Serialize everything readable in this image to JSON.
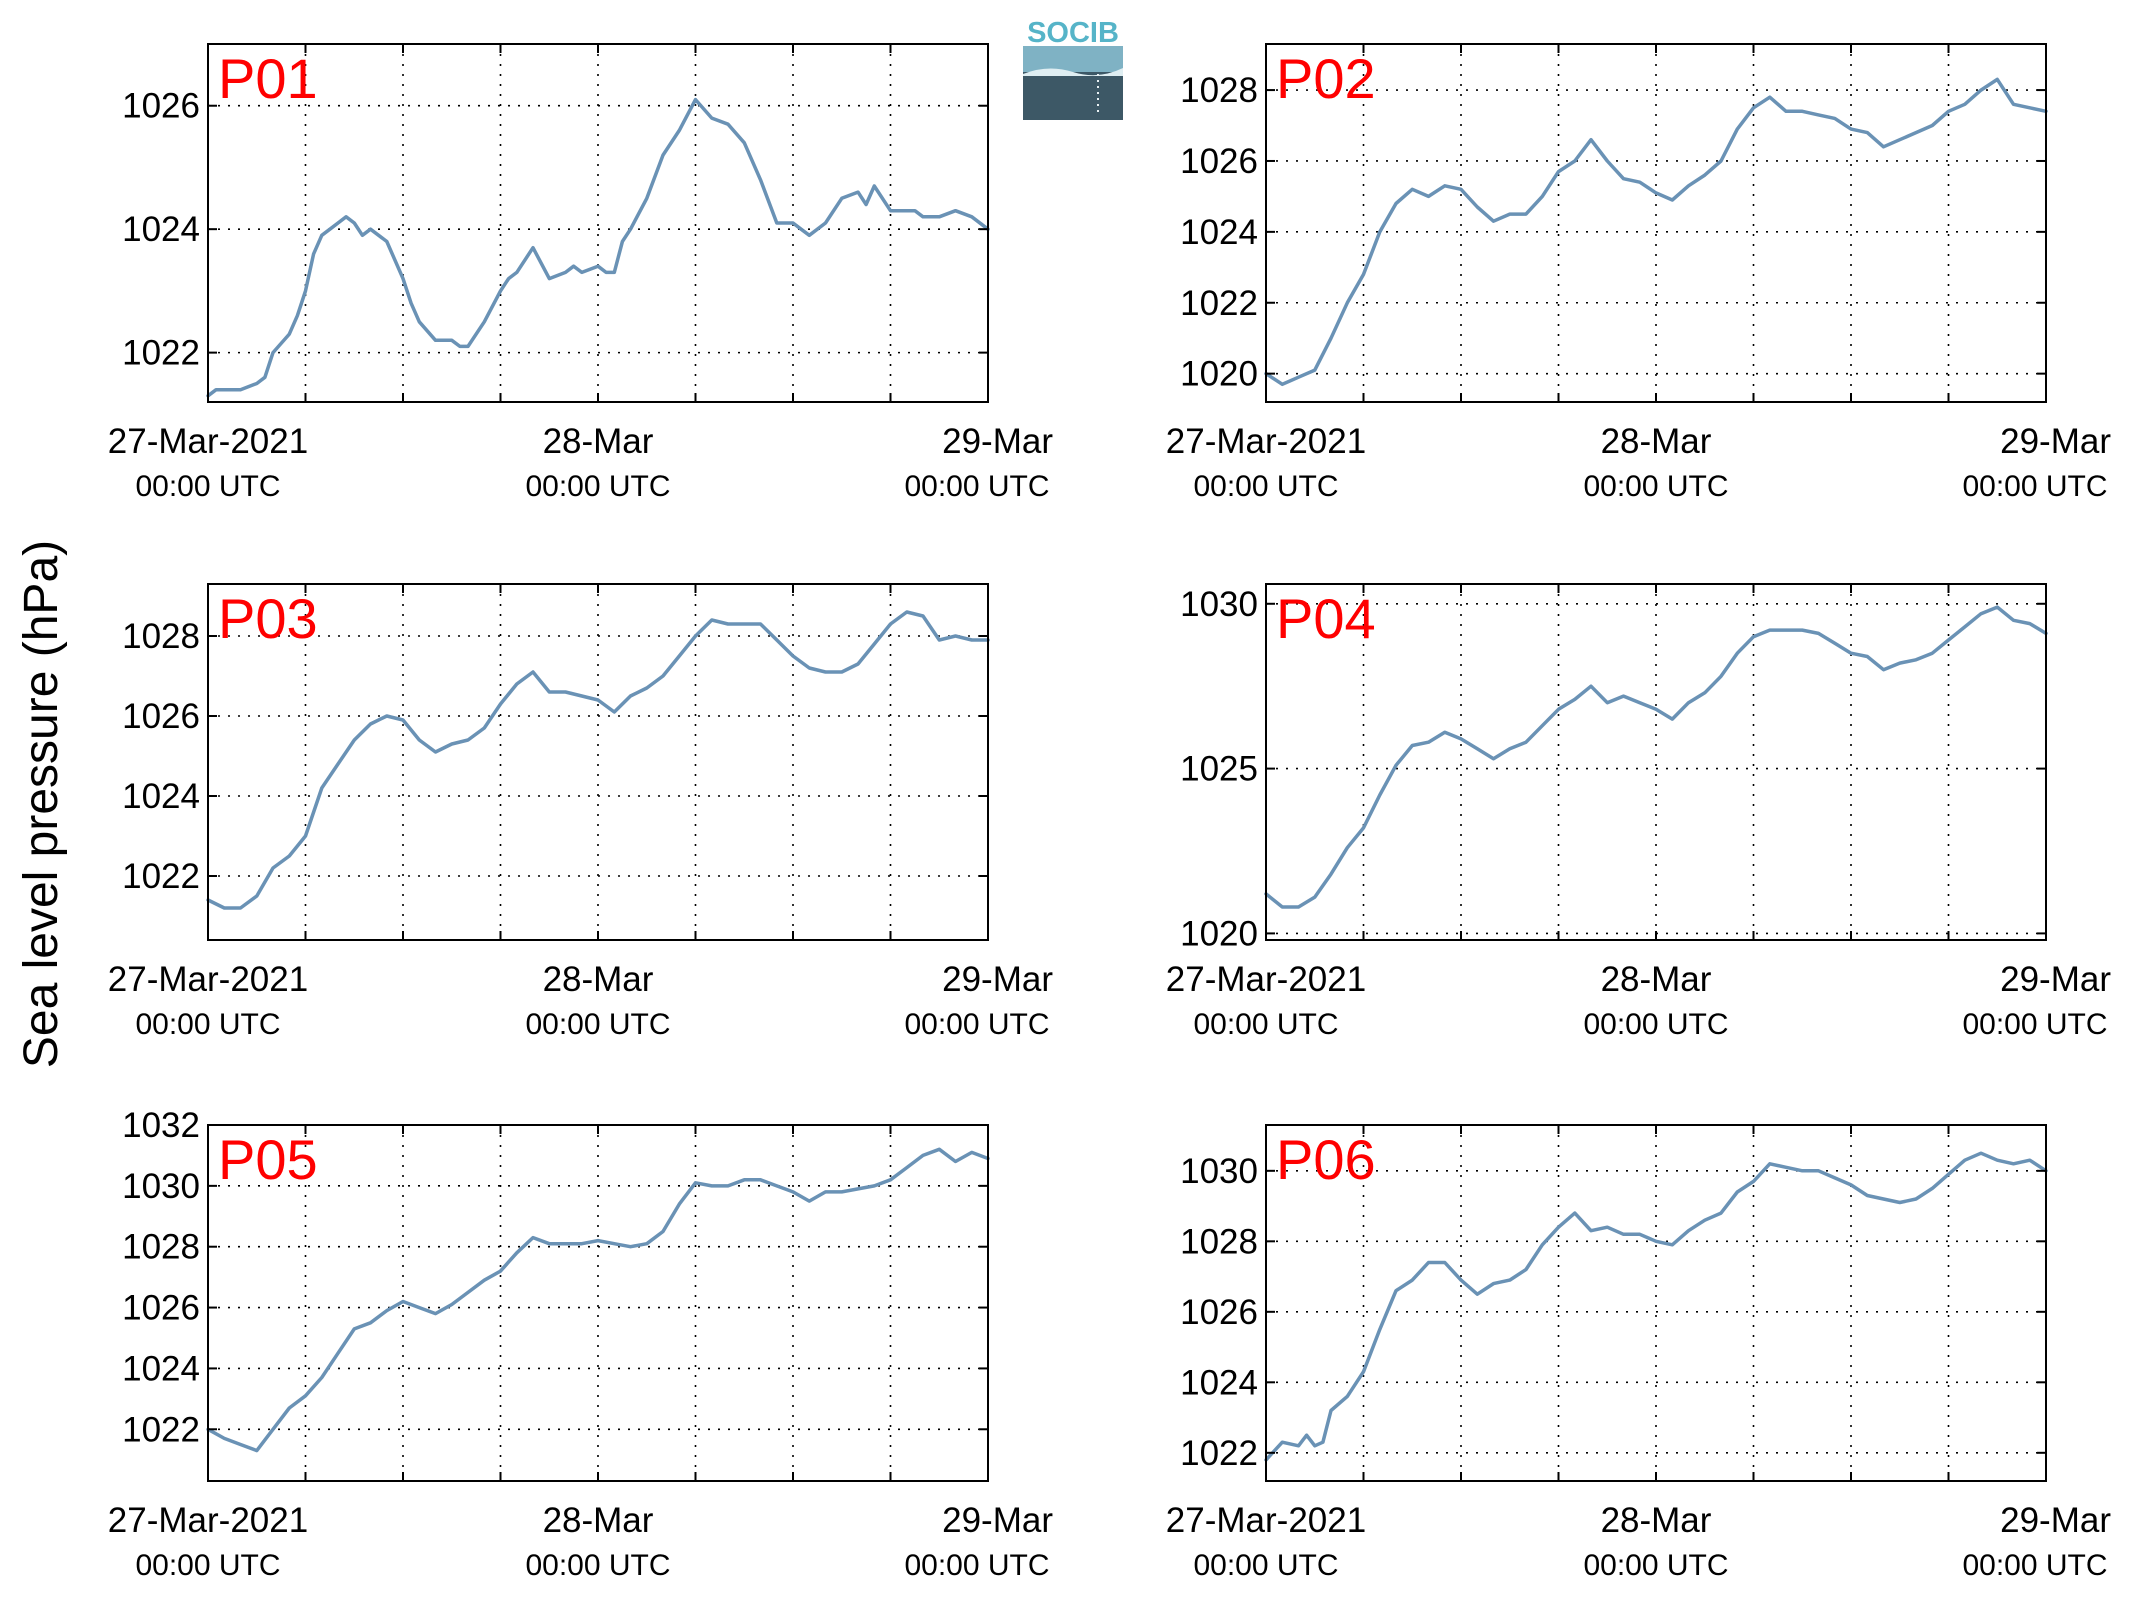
{
  "figure": {
    "ylabel": "Sea level pressure (hPa)",
    "logo_text": "SOCIB",
    "line_color": "#6a92b5",
    "panel_label_color": "#ff0000"
  },
  "chart_data": [
    {
      "type": "line",
      "label": "P01",
      "ylim": [
        1021.2,
        1027.0
      ],
      "yticks": [
        1022,
        1024,
        1026
      ],
      "ytick_labels": [
        "1022",
        "1024",
        "1026"
      ],
      "xlim": [
        0,
        48
      ],
      "xticks": [
        0,
        24,
        48
      ],
      "xtick_labels": [
        "27-Mar-2021",
        "28-Mar",
        "29-Mar"
      ],
      "xtick_sublabels": [
        "00:00 UTC",
        "00:00 UTC",
        "00:00 UTC"
      ],
      "grid": true,
      "series": [
        {
          "x": [
            0,
            0.5,
            1,
            2,
            3,
            3.5,
            4,
            5,
            5.5,
            6,
            6.5,
            7,
            7.5,
            8,
            8.5,
            9,
            9.5,
            10,
            10.5,
            11,
            12,
            12.5,
            13,
            14,
            15,
            15.5,
            16,
            17,
            18,
            18.5,
            19,
            20,
            21,
            22,
            22.5,
            23,
            24,
            24.5,
            25,
            25.5,
            26,
            27,
            28,
            29,
            30,
            31,
            32,
            33,
            34,
            35,
            36,
            36.5,
            37,
            38,
            39,
            40,
            40.5,
            41,
            42,
            43,
            43.5,
            44,
            45,
            46,
            47,
            48
          ],
          "y": [
            1021.3,
            1021.4,
            1021.4,
            1021.4,
            1021.5,
            1021.6,
            1022.0,
            1022.3,
            1022.6,
            1023.0,
            1023.6,
            1023.9,
            1024.0,
            1024.1,
            1024.2,
            1024.1,
            1023.9,
            1024.0,
            1023.9,
            1023.8,
            1023.2,
            1022.8,
            1022.5,
            1022.2,
            1022.2,
            1022.1,
            1022.1,
            1022.5,
            1023.0,
            1023.2,
            1023.3,
            1023.7,
            1023.2,
            1023.3,
            1023.4,
            1023.3,
            1023.4,
            1023.3,
            1023.3,
            1023.8,
            1024.0,
            1024.5,
            1025.2,
            1025.6,
            1026.1,
            1025.8,
            1025.7,
            1025.4,
            1024.8,
            1024.1,
            1024.1,
            1024.0,
            1023.9,
            1024.1,
            1024.5,
            1024.6,
            1024.4,
            1024.7,
            1024.3,
            1024.3,
            1024.3,
            1024.2,
            1024.2,
            1024.3,
            1024.2,
            1024.0
          ]
        }
      ]
    },
    {
      "type": "line",
      "label": "P02",
      "ylim": [
        1019.2,
        1029.3
      ],
      "yticks": [
        1020,
        1022,
        1024,
        1026,
        1028
      ],
      "ytick_labels": [
        "1020",
        "1022",
        "1024",
        "1026",
        "1028"
      ],
      "xlim": [
        0,
        48
      ],
      "xticks": [
        0,
        24,
        48
      ],
      "xtick_labels": [
        "27-Mar-2021",
        "28-Mar",
        "29-Mar"
      ],
      "xtick_sublabels": [
        "00:00 UTC",
        "00:00 UTC",
        "00:00 UTC"
      ],
      "grid": true,
      "series": [
        {
          "x": [
            0,
            1,
            2,
            3,
            4,
            5,
            6,
            7,
            8,
            9,
            10,
            11,
            12,
            13,
            14,
            15,
            16,
            17,
            18,
            19,
            20,
            21,
            22,
            23,
            24,
            25,
            26,
            27,
            28,
            29,
            30,
            31,
            32,
            33,
            34,
            35,
            36,
            37,
            38,
            39,
            40,
            41,
            42,
            43,
            44,
            45,
            46,
            47,
            48
          ],
          "y": [
            1020.0,
            1019.7,
            1019.9,
            1020.1,
            1021.0,
            1022.0,
            1022.8,
            1024.0,
            1024.8,
            1025.2,
            1025.0,
            1025.3,
            1025.2,
            1024.7,
            1024.3,
            1024.5,
            1024.5,
            1025.0,
            1025.7,
            1026.0,
            1026.6,
            1026.0,
            1025.5,
            1025.4,
            1025.1,
            1024.9,
            1025.3,
            1025.6,
            1026.0,
            1026.9,
            1027.5,
            1027.8,
            1027.4,
            1027.4,
            1027.3,
            1027.2,
            1026.9,
            1026.8,
            1026.4,
            1026.6,
            1026.8,
            1027.0,
            1027.4,
            1027.6,
            1028.0,
            1028.3,
            1027.6,
            1027.5,
            1027.4
          ]
        }
      ]
    },
    {
      "type": "line",
      "label": "P03",
      "ylim": [
        1020.4,
        1029.3
      ],
      "yticks": [
        1022,
        1024,
        1026,
        1028
      ],
      "ytick_labels": [
        "1022",
        "1024",
        "1026",
        "1028"
      ],
      "xlim": [
        0,
        48
      ],
      "xticks": [
        0,
        24,
        48
      ],
      "xtick_labels": [
        "27-Mar-2021",
        "28-Mar",
        "29-Mar"
      ],
      "xtick_sublabels": [
        "00:00 UTC",
        "00:00 UTC",
        "00:00 UTC"
      ],
      "grid": true,
      "series": [
        {
          "x": [
            0,
            1,
            2,
            3,
            4,
            5,
            6,
            7,
            8,
            9,
            10,
            11,
            12,
            13,
            14,
            15,
            16,
            17,
            18,
            19,
            20,
            21,
            22,
            23,
            24,
            25,
            26,
            27,
            28,
            29,
            30,
            31,
            32,
            33,
            34,
            35,
            36,
            37,
            38,
            39,
            40,
            41,
            42,
            43,
            44,
            45,
            46,
            47,
            48
          ],
          "y": [
            1021.4,
            1021.2,
            1021.2,
            1021.5,
            1022.2,
            1022.5,
            1023.0,
            1024.2,
            1024.8,
            1025.4,
            1025.8,
            1026.0,
            1025.9,
            1025.4,
            1025.1,
            1025.3,
            1025.4,
            1025.7,
            1026.3,
            1026.8,
            1027.1,
            1026.6,
            1026.6,
            1026.5,
            1026.4,
            1026.1,
            1026.5,
            1026.7,
            1027.0,
            1027.5,
            1028.0,
            1028.4,
            1028.3,
            1028.3,
            1028.3,
            1027.9,
            1027.5,
            1027.2,
            1027.1,
            1027.1,
            1027.3,
            1027.8,
            1028.3,
            1028.6,
            1028.5,
            1027.9,
            1028.0,
            1027.9,
            1027.9
          ]
        }
      ]
    },
    {
      "type": "line",
      "label": "P04",
      "ylim": [
        1019.8,
        1030.6
      ],
      "yticks": [
        1020,
        1025,
        1030
      ],
      "ytick_labels": [
        "1020",
        "1025",
        "1030"
      ],
      "xlim": [
        0,
        48
      ],
      "xticks": [
        0,
        24,
        48
      ],
      "xtick_labels": [
        "27-Mar-2021",
        "28-Mar",
        "29-Mar"
      ],
      "xtick_sublabels": [
        "00:00 UTC",
        "00:00 UTC",
        "00:00 UTC"
      ],
      "grid": true,
      "series": [
        {
          "x": [
            0,
            1,
            2,
            3,
            4,
            5,
            6,
            7,
            8,
            9,
            10,
            11,
            12,
            13,
            14,
            15,
            16,
            17,
            18,
            19,
            20,
            21,
            22,
            23,
            24,
            25,
            26,
            27,
            28,
            29,
            30,
            31,
            32,
            33,
            34,
            35,
            36,
            37,
            38,
            39,
            40,
            41,
            42,
            43,
            44,
            45,
            46,
            47,
            48
          ],
          "y": [
            1021.2,
            1020.8,
            1020.8,
            1021.1,
            1021.8,
            1022.6,
            1023.2,
            1024.2,
            1025.1,
            1025.7,
            1025.8,
            1026.1,
            1025.9,
            1025.6,
            1025.3,
            1025.6,
            1025.8,
            1026.3,
            1026.8,
            1027.1,
            1027.5,
            1027.0,
            1027.2,
            1027.0,
            1026.8,
            1026.5,
            1027.0,
            1027.3,
            1027.8,
            1028.5,
            1029.0,
            1029.2,
            1029.2,
            1029.2,
            1029.1,
            1028.8,
            1028.5,
            1028.4,
            1028.0,
            1028.2,
            1028.3,
            1028.5,
            1028.9,
            1029.3,
            1029.7,
            1029.9,
            1029.5,
            1029.4,
            1029.1
          ]
        }
      ]
    },
    {
      "type": "line",
      "label": "P05",
      "ylim": [
        1020.3,
        1032.0
      ],
      "yticks": [
        1022,
        1024,
        1026,
        1028,
        1030,
        1032
      ],
      "ytick_labels": [
        "1022",
        "1024",
        "1026",
        "1028",
        "1030",
        "1032"
      ],
      "xlim": [
        0,
        48
      ],
      "xticks": [
        0,
        24,
        48
      ],
      "xtick_labels": [
        "27-Mar-2021",
        "28-Mar",
        "29-Mar"
      ],
      "xtick_sublabels": [
        "00:00 UTC",
        "00:00 UTC",
        "00:00 UTC"
      ],
      "grid": true,
      "series": [
        {
          "x": [
            0,
            1,
            2,
            3,
            4,
            5,
            6,
            7,
            8,
            9,
            10,
            11,
            12,
            13,
            14,
            15,
            16,
            17,
            18,
            19,
            20,
            21,
            22,
            23,
            24,
            25,
            26,
            27,
            28,
            29,
            30,
            31,
            32,
            33,
            34,
            35,
            36,
            37,
            38,
            39,
            40,
            41,
            42,
            43,
            44,
            45,
            46,
            47,
            48
          ],
          "y": [
            1022.0,
            1021.7,
            1021.5,
            1021.3,
            1022.0,
            1022.7,
            1023.1,
            1023.7,
            1024.5,
            1025.3,
            1025.5,
            1025.9,
            1026.2,
            1026.0,
            1025.8,
            1026.1,
            1026.5,
            1026.9,
            1027.2,
            1027.8,
            1028.3,
            1028.1,
            1028.1,
            1028.1,
            1028.2,
            1028.1,
            1028.0,
            1028.1,
            1028.5,
            1029.4,
            1030.1,
            1030.0,
            1030.0,
            1030.2,
            1030.2,
            1030.0,
            1029.8,
            1029.5,
            1029.8,
            1029.8,
            1029.9,
            1030.0,
            1030.2,
            1030.6,
            1031.0,
            1031.2,
            1030.8,
            1031.1,
            1030.9
          ]
        }
      ]
    },
    {
      "type": "line",
      "label": "P06",
      "ylim": [
        1021.2,
        1031.3
      ],
      "yticks": [
        1022,
        1024,
        1026,
        1028,
        1030
      ],
      "ytick_labels": [
        "1022",
        "1024",
        "1026",
        "1028",
        "1030"
      ],
      "xlim": [
        0,
        48
      ],
      "xticks": [
        0,
        24,
        48
      ],
      "xtick_labels": [
        "27-Mar-2021",
        "28-Mar",
        "29-Mar"
      ],
      "xtick_sublabels": [
        "00:00 UTC",
        "00:00 UTC",
        "00:00 UTC"
      ],
      "grid": true,
      "series": [
        {
          "x": [
            0,
            1,
            2,
            2.5,
            3,
            3.5,
            4,
            5,
            6,
            7,
            8,
            9,
            10,
            11,
            12,
            13,
            14,
            15,
            16,
            17,
            18,
            19,
            20,
            21,
            22,
            23,
            24,
            25,
            26,
            27,
            28,
            29,
            30,
            31,
            32,
            33,
            34,
            35,
            36,
            37,
            38,
            39,
            40,
            41,
            42,
            43,
            44,
            45,
            46,
            47,
            48
          ],
          "y": [
            1021.8,
            1022.3,
            1022.2,
            1022.5,
            1022.2,
            1022.3,
            1023.2,
            1023.6,
            1024.3,
            1025.5,
            1026.6,
            1026.9,
            1027.4,
            1027.4,
            1026.9,
            1026.5,
            1026.8,
            1026.9,
            1027.2,
            1027.9,
            1028.4,
            1028.8,
            1028.3,
            1028.4,
            1028.2,
            1028.2,
            1028.0,
            1027.9,
            1028.3,
            1028.6,
            1028.8,
            1029.4,
            1029.7,
            1030.2,
            1030.1,
            1030.0,
            1030.0,
            1029.8,
            1029.6,
            1029.3,
            1029.2,
            1029.1,
            1029.2,
            1029.5,
            1029.9,
            1030.3,
            1030.5,
            1030.3,
            1030.2,
            1030.3,
            1030.0
          ]
        }
      ]
    }
  ]
}
